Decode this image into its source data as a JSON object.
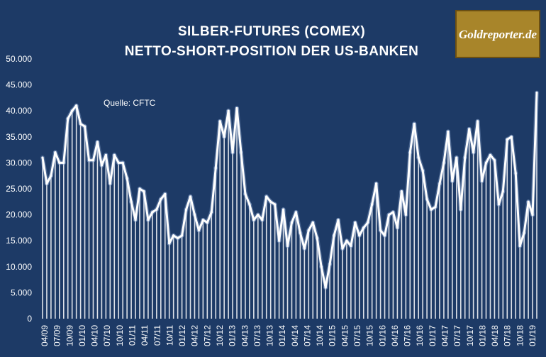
{
  "colors": {
    "background": "#1d3a66",
    "series": "#ffffff",
    "logo_bg": "#a8852a"
  },
  "logo": {
    "text": "Goldreporter.de"
  },
  "chart_data": {
    "type": "line",
    "title_line1": "SILBER-FUTURES (COMEX)",
    "title_line2": "NETTO-SHORT-POSITION DER US-BANKEN",
    "annotation": "Quelle: CFTC",
    "ylim": [
      0,
      50000
    ],
    "yticks": [
      "0",
      "5.000",
      "10.000",
      "15.000",
      "20.000",
      "25.000",
      "30.000",
      "35.000",
      "40.000",
      "45.000",
      "50.000"
    ],
    "xtick_labels": [
      "04/09",
      "07/09",
      "10/09",
      "01/10",
      "04/10",
      "07/10",
      "10/10",
      "01/11",
      "04/11",
      "07/11",
      "10/11",
      "01/12",
      "04/12",
      "07/12",
      "10/12",
      "01/13",
      "04/13",
      "07/13",
      "10/13",
      "01/14",
      "04/14",
      "07/14",
      "10/14",
      "01/15",
      "04/15",
      "07/15",
      "10/15",
      "01/16",
      "04/16",
      "07/16",
      "10/16",
      "01/17",
      "04/17",
      "07/17",
      "10/17",
      "01/18",
      "04/18",
      "07/18",
      "10/18",
      "01/19"
    ],
    "grid": false,
    "legend": "none",
    "series": [
      {
        "values": [
          31000,
          26000,
          27500,
          32000,
          30000,
          30000,
          38500,
          40000,
          41000,
          37500,
          37000,
          30500,
          30500,
          34000,
          29500,
          31500,
          26000,
          31500,
          30000,
          30000,
          27000,
          22500,
          19000,
          25000,
          24500,
          19000,
          20500,
          21000,
          23000,
          24000,
          14500,
          16000,
          15500,
          16000,
          21000,
          23500,
          20000,
          17000,
          19000,
          18500,
          20500,
          29000,
          38000,
          35000,
          40000,
          32000,
          40500,
          32000,
          24000,
          22000,
          19000,
          20000,
          19000,
          23500,
          22500,
          22000,
          15000,
          21000,
          14000,
          18500,
          20500,
          16500,
          13500,
          17000,
          18500,
          15500,
          10000,
          6000,
          10500,
          16000,
          19000,
          13500,
          15000,
          14000,
          18500,
          16000,
          17500,
          18500,
          22000,
          26000,
          17000,
          16000,
          20000,
          20500,
          17500,
          24500,
          20000,
          32000,
          37500,
          31000,
          28500,
          23000,
          21000,
          21500,
          26000,
          30000,
          36000,
          26500,
          31000,
          21000,
          31000,
          36500,
          32000,
          38000,
          26500,
          30000,
          31500,
          30500,
          22000,
          24500,
          34500,
          35000,
          28000,
          14000,
          16500,
          22500,
          20000,
          43500
        ]
      }
    ]
  }
}
